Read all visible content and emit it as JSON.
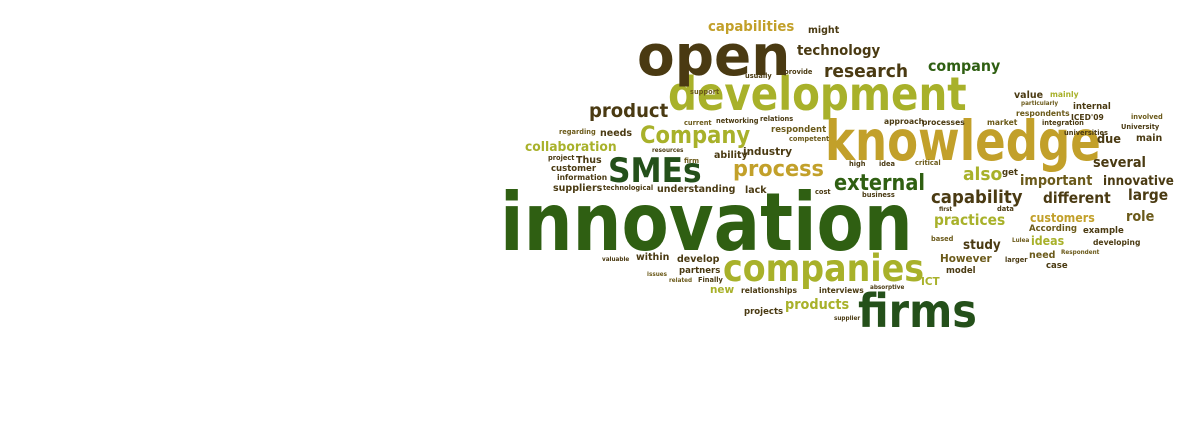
{
  "palette": {
    "dark_brown": "#4a3a12",
    "olive_brown": "#6b5a1a",
    "yellow_green": "#a8b12a",
    "gold": "#c2a02a",
    "dark_green": "#2f5f12",
    "mid_green": "#4f7d1c",
    "forest": "#24501a"
  },
  "words": [
    {
      "text": "innovation",
      "color": "dark_green"
    },
    {
      "text": "knowledge",
      "color": "gold"
    },
    {
      "text": "development",
      "color": "yellow_green"
    },
    {
      "text": "open",
      "color": "dark_brown"
    },
    {
      "text": "companies",
      "color": "yellow_green"
    },
    {
      "text": "firms",
      "color": "forest"
    },
    {
      "text": "SMEs",
      "color": "forest"
    },
    {
      "text": "Company",
      "color": "yellow_green"
    },
    {
      "text": "process",
      "color": "gold"
    },
    {
      "text": "external",
      "color": "dark_green"
    },
    {
      "text": "product",
      "color": "dark_brown"
    },
    {
      "text": "research",
      "color": "dark_brown"
    },
    {
      "text": "company",
      "color": "dark_green"
    },
    {
      "text": "technology",
      "color": "dark_brown"
    },
    {
      "text": "capabilities",
      "color": "gold"
    },
    {
      "text": "capability",
      "color": "dark_brown"
    },
    {
      "text": "also",
      "color": "yellow_green"
    },
    {
      "text": "collaboration",
      "color": "yellow_green"
    },
    {
      "text": "different",
      "color": "dark_brown"
    },
    {
      "text": "important",
      "color": "olive_brown"
    },
    {
      "text": "several",
      "color": "dark_brown"
    },
    {
      "text": "large",
      "color": "dark_brown"
    },
    {
      "text": "practices",
      "color": "yellow_green"
    },
    {
      "text": "innovative",
      "color": "dark_brown"
    },
    {
      "text": "role",
      "color": "olive_brown"
    },
    {
      "text": "products",
      "color": "yellow_green"
    },
    {
      "text": "study",
      "color": "dark_brown"
    },
    {
      "text": "customers",
      "color": "gold"
    },
    {
      "text": "ideas",
      "color": "yellow_green"
    },
    {
      "text": "industry",
      "color": "dark_brown"
    },
    {
      "text": "value",
      "color": "dark_brown"
    },
    {
      "text": "due",
      "color": "dark_brown"
    },
    {
      "text": "However",
      "color": "olive_brown"
    },
    {
      "text": "need",
      "color": "olive_brown"
    },
    {
      "text": "ICT",
      "color": "yellow_green"
    },
    {
      "text": "new",
      "color": "yellow_green"
    },
    {
      "text": "within",
      "color": "dark_brown"
    },
    {
      "text": "might",
      "color": "dark_brown"
    },
    {
      "text": "needs",
      "color": "dark_brown"
    },
    {
      "text": "Thus",
      "color": "dark_brown"
    },
    {
      "text": "ability",
      "color": "dark_brown"
    },
    {
      "text": "lack",
      "color": "dark_brown"
    },
    {
      "text": "get",
      "color": "dark_brown"
    },
    {
      "text": "develop",
      "color": "dark_brown"
    },
    {
      "text": "partners",
      "color": "dark_brown"
    },
    {
      "text": "model",
      "color": "dark_brown"
    },
    {
      "text": "case",
      "color": "dark_brown"
    },
    {
      "text": "main",
      "color": "dark_brown"
    },
    {
      "text": "internal",
      "color": "dark_brown"
    },
    {
      "text": "example",
      "color": "dark_brown"
    },
    {
      "text": "developing",
      "color": "dark_brown"
    },
    {
      "text": "suppliers",
      "color": "dark_brown"
    },
    {
      "text": "customer",
      "color": "dark_brown"
    },
    {
      "text": "information",
      "color": "dark_brown"
    },
    {
      "text": "understanding",
      "color": "dark_brown"
    },
    {
      "text": "According",
      "color": "olive_brown"
    },
    {
      "text": "respondents",
      "color": "olive_brown"
    },
    {
      "text": "ICED'09",
      "color": "dark_brown"
    },
    {
      "text": "mainly",
      "color": "yellow_green"
    },
    {
      "text": "market",
      "color": "olive_brown"
    },
    {
      "text": "projects",
      "color": "dark_brown"
    },
    {
      "text": "relationships",
      "color": "dark_brown"
    },
    {
      "text": "interviews",
      "color": "dark_brown"
    },
    {
      "text": "business",
      "color": "dark_brown"
    },
    {
      "text": "respondent",
      "color": "olive_brown"
    },
    {
      "text": "approach",
      "color": "dark_brown"
    },
    {
      "text": "processes",
      "color": "dark_brown"
    },
    {
      "text": "integration",
      "color": "dark_brown"
    },
    {
      "text": "universities",
      "color": "dark_brown"
    },
    {
      "text": "University",
      "color": "dark_brown"
    },
    {
      "text": "involved",
      "color": "olive_brown"
    },
    {
      "text": "provide",
      "color": "dark_brown"
    },
    {
      "text": "usually",
      "color": "dark_brown"
    },
    {
      "text": "support",
      "color": "olive_brown"
    },
    {
      "text": "current",
      "color": "olive_brown"
    },
    {
      "text": "networking",
      "color": "dark_brown"
    },
    {
      "text": "relations",
      "color": "dark_brown"
    },
    {
      "text": "competent",
      "color": "olive_brown"
    },
    {
      "text": "regarding",
      "color": "olive_brown"
    },
    {
      "text": "project",
      "color": "dark_brown"
    },
    {
      "text": "resources",
      "color": "dark_brown"
    },
    {
      "text": "technological",
      "color": "dark_brown"
    },
    {
      "text": "firm",
      "color": "olive_brown"
    },
    {
      "text": "high",
      "color": "dark_brown"
    },
    {
      "text": "idea",
      "color": "dark_brown"
    },
    {
      "text": "critical",
      "color": "olive_brown"
    },
    {
      "text": "cost",
      "color": "dark_brown"
    },
    {
      "text": "first",
      "color": "dark_brown"
    },
    {
      "text": "data",
      "color": "dark_brown"
    },
    {
      "text": "based",
      "color": "olive_brown"
    },
    {
      "text": "Lulea",
      "color": "olive_brown"
    },
    {
      "text": "larger",
      "color": "dark_brown"
    },
    {
      "text": "Respondent",
      "color": "olive_brown"
    },
    {
      "text": "particularly",
      "color": "olive_brown"
    },
    {
      "text": "valuable",
      "color": "dark_brown"
    },
    {
      "text": "issues",
      "color": "olive_brown"
    },
    {
      "text": "related",
      "color": "olive_brown"
    },
    {
      "text": "Finally",
      "color": "dark_brown"
    },
    {
      "text": "absorptive",
      "color": "dark_brown"
    },
    {
      "text": "supplier",
      "color": "dark_brown"
    }
  ]
}
